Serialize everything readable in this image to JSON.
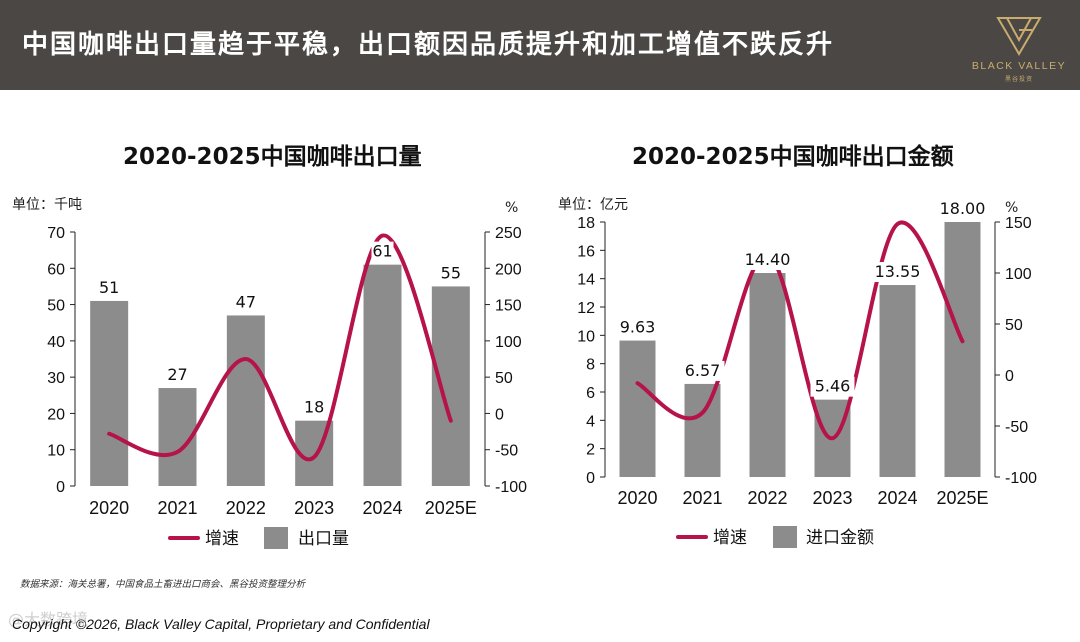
{
  "header": {
    "title": "中国咖啡出口量趋于平稳，出口额因品质提升和加工增值不跌反升",
    "logo_text": "BLACK VALLEY",
    "logo_sub": "黑谷投资"
  },
  "charts": [
    {
      "title": "2020-2025中国咖啡出口量",
      "unit_left": "单位：千吨",
      "unit_right": "%",
      "legend_line": "增速",
      "legend_bar": "出口量"
    },
    {
      "title": "2020-2025中国咖啡出口金额",
      "unit_left": "单位：亿元",
      "unit_right": "%",
      "legend_line": "增速",
      "legend_bar": "进口金额"
    }
  ],
  "chart_data": [
    {
      "type": "bar",
      "title": "2020-2025中国咖啡出口量",
      "categories": [
        "2020",
        "2021",
        "2022",
        "2023",
        "2024",
        "2025E"
      ],
      "series": [
        {
          "name": "出口量",
          "type": "bar",
          "axis": "left",
          "values": [
            51,
            27,
            47,
            18,
            61,
            55
          ],
          "labels": [
            "51",
            "27",
            "47",
            "18",
            "61",
            "55"
          ],
          "color": "#8c8c8c"
        },
        {
          "name": "增速",
          "type": "line",
          "axis": "right",
          "values": [
            -28,
            -53,
            75,
            -60,
            245,
            -10
          ],
          "color": "#b5134a"
        }
      ],
      "ylabel_left": "单位：千吨",
      "ylabel_right": "%",
      "ylim_left": [
        0,
        70
      ],
      "ylim_right": [
        -100,
        250
      ],
      "yticks_left": [
        0,
        10,
        20,
        30,
        40,
        50,
        60,
        70
      ],
      "yticks_right": [
        -100,
        -50,
        0,
        50,
        100,
        150,
        200,
        250
      ],
      "legend": "bottom",
      "grid": false
    },
    {
      "type": "bar",
      "title": "2020-2025中国咖啡出口金额",
      "categories": [
        "2020",
        "2021",
        "2022",
        "2023",
        "2024",
        "2025E"
      ],
      "series": [
        {
          "name": "进口金额",
          "type": "bar",
          "axis": "left",
          "values": [
            9.63,
            6.57,
            14.4,
            5.46,
            13.55,
            18.0
          ],
          "labels": [
            "9.63",
            "6.57",
            "14.40",
            "5.46",
            "13.55",
            "18.00"
          ],
          "color": "#8c8c8c"
        },
        {
          "name": "增速",
          "type": "line",
          "axis": "right",
          "values": [
            -8,
            -37,
            118,
            -62,
            148,
            33
          ],
          "color": "#b5134a"
        }
      ],
      "ylabel_left": "单位：亿元",
      "ylabel_right": "%",
      "ylim_left": [
        0,
        18
      ],
      "ylim_right": [
        -100,
        150
      ],
      "yticks_left": [
        0,
        2,
        4,
        6,
        8,
        10,
        12,
        14,
        16,
        18
      ],
      "yticks_right": [
        -100,
        -50,
        0,
        50,
        100,
        150
      ],
      "legend": "bottom",
      "grid": false
    }
  ],
  "footer": {
    "source": "数据来源：海关总署，中国食品土畜进出口商会、黑谷投资整理分析",
    "copyright": "Copyright ©2026, Black Valley Capital, Proprietary and Confidential",
    "watermark": "@大数跨境"
  }
}
